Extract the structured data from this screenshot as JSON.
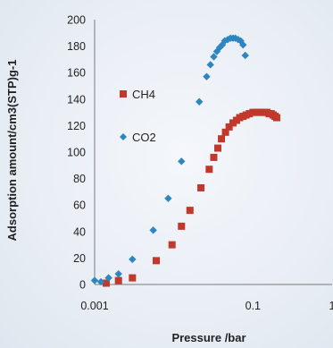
{
  "chart_data": {
    "type": "scatter",
    "title": "",
    "xlabel": "Pressure /bar",
    "ylabel": "Adsorption amount/cm3(STP)g-1",
    "xscale": "log",
    "xlim": [
      0.001,
      1
    ],
    "ylim": [
      0,
      200
    ],
    "x_ticks": [
      0.001,
      0.1,
      1
    ],
    "x_tick_labels": [
      "0.001",
      "0.1",
      "1"
    ],
    "y_ticks": [
      0,
      20,
      40,
      60,
      80,
      100,
      120,
      140,
      160,
      180,
      200
    ],
    "y_tick_labels": [
      "0",
      "20",
      "40",
      "60",
      "80",
      "100",
      "120",
      "140",
      "160",
      "180",
      "200"
    ],
    "grid": false,
    "legend_position": "left",
    "series": [
      {
        "name": "CH4",
        "marker": "square",
        "color": "#c0392b",
        "x": [
          0.0014,
          0.002,
          0.003,
          0.006,
          0.0095,
          0.0125,
          0.016,
          0.022,
          0.028,
          0.032,
          0.036,
          0.04,
          0.045,
          0.05,
          0.056,
          0.062,
          0.068,
          0.075,
          0.082,
          0.09,
          0.1,
          0.11,
          0.12,
          0.13,
          0.14,
          0.15,
          0.16,
          0.17,
          0.18,
          0.19,
          0.2
        ],
        "y": [
          1,
          3,
          5,
          18,
          30,
          44,
          56,
          73,
          87,
          96,
          103,
          110,
          115,
          119,
          122,
          124,
          126,
          127,
          128,
          129,
          130,
          130,
          130,
          130,
          130,
          130,
          129,
          129,
          128,
          127,
          126
        ]
      },
      {
        "name": "CO2",
        "marker": "diamond",
        "color": "#2e86c1",
        "x": [
          0.001,
          0.0012,
          0.0015,
          0.002,
          0.003,
          0.0055,
          0.0085,
          0.0125,
          0.021,
          0.026,
          0.029,
          0.032,
          0.035,
          0.038,
          0.041,
          0.044,
          0.048,
          0.052,
          0.056,
          0.06,
          0.065,
          0.07,
          0.075,
          0.08
        ],
        "y": [
          3,
          2,
          5,
          8,
          19,
          41,
          65,
          93,
          138,
          157,
          166,
          172,
          176,
          179,
          181,
          184,
          185,
          186,
          186,
          186,
          185,
          184,
          181,
          173
        ]
      }
    ]
  }
}
